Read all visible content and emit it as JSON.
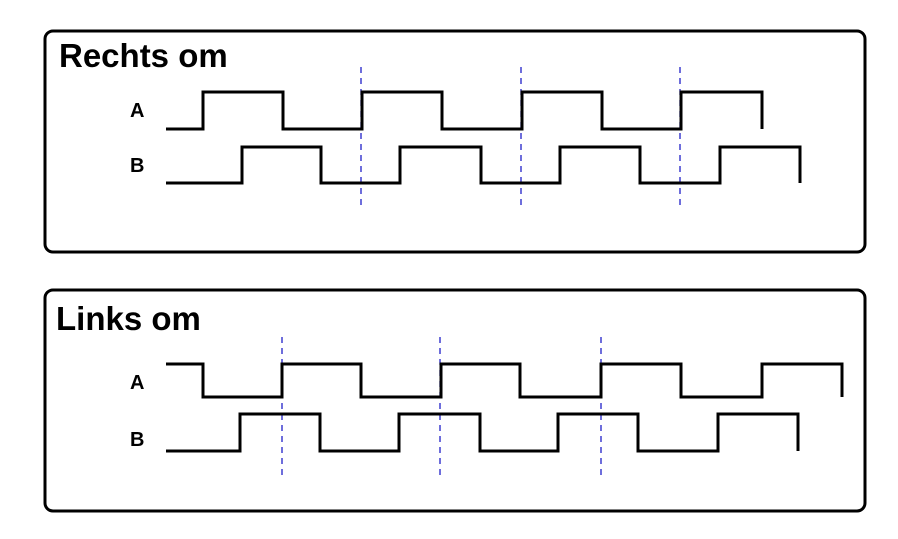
{
  "panels": [
    {
      "title": "Rechts om",
      "signals": [
        {
          "label": "A",
          "initial_level": 0,
          "transitions": [
            203,
            283,
            362,
            442,
            522,
            602,
            681
          ],
          "end": 762,
          "end_drop": true
        },
        {
          "label": "B",
          "initial_level": 0,
          "transitions": [
            242,
            321,
            400,
            481,
            560,
            640,
            720
          ],
          "end": 800,
          "end_drop": true
        }
      ],
      "markers": [
        361,
        521,
        680
      ]
    },
    {
      "title": "Links om",
      "signals": [
        {
          "label": "A",
          "initial_level": 1,
          "transitions": [
            203,
            282,
            361,
            441,
            520,
            601,
            681,
            762
          ],
          "end": 842,
          "end_drop": true
        },
        {
          "label": "B",
          "initial_level": 0,
          "transitions": [
            240,
            320,
            399,
            480,
            558,
            638,
            718
          ],
          "end": 798,
          "end_drop": true
        }
      ],
      "markers": [
        282,
        440,
        601
      ]
    }
  ]
}
